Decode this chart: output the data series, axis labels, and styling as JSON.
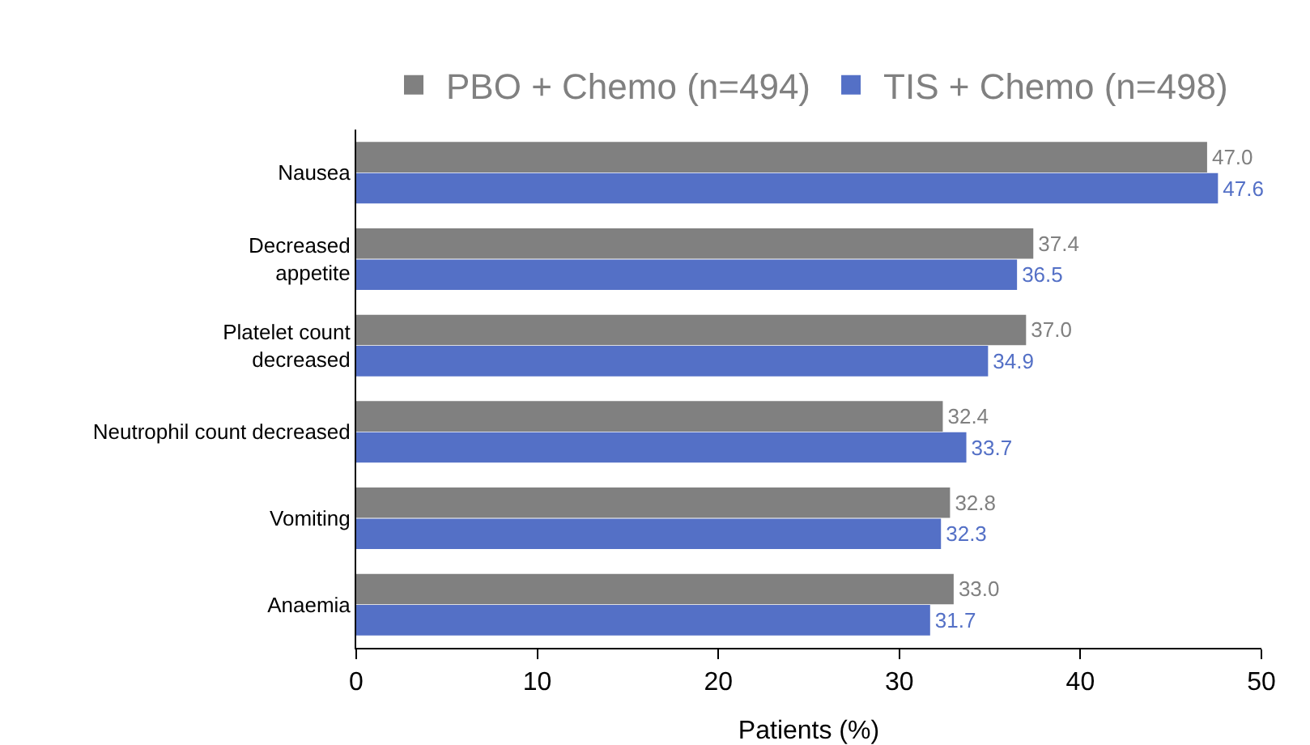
{
  "chart_data": {
    "type": "bar",
    "orientation": "horizontal",
    "categories": [
      "Nausea",
      "Decreased\nappetite",
      "Platelet count\ndecreased",
      "Neutrophil count decreased",
      "Vomiting",
      "Anaemia"
    ],
    "series": [
      {
        "name": "PBO + Chemo (n=494)",
        "color": "#808080",
        "values": [
          47.0,
          37.4,
          37.0,
          32.4,
          32.8,
          33.0
        ],
        "value_labels": [
          "47.0",
          "37.4",
          "37.0",
          "32.4",
          "32.8",
          "33.0"
        ]
      },
      {
        "name": "TIS + Chemo (n=498)",
        "color": "#5470c6",
        "values": [
          47.6,
          36.5,
          34.9,
          33.7,
          32.3,
          31.7
        ],
        "value_labels": [
          "47.6",
          "36.5",
          "34.9",
          "33.7",
          "32.3",
          "31.7"
        ]
      }
    ],
    "xlabel": "Patients (%)",
    "xlim": [
      0,
      50
    ],
    "xticks": [
      0,
      10,
      20,
      30,
      40,
      50
    ],
    "grid": false,
    "legend": "top"
  }
}
